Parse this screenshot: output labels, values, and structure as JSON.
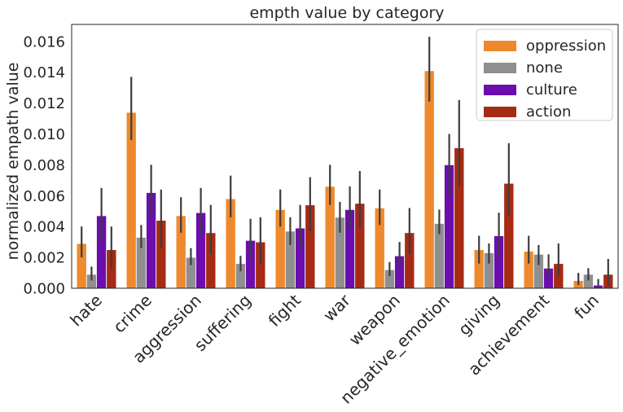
{
  "chart_data": {
    "type": "bar",
    "title": "empth value by category",
    "xlabel": "",
    "ylabel": "normalized empath value",
    "ylim": [
      0,
      0.0171
    ],
    "yticks": [
      "0.000",
      "0.002",
      "0.004",
      "0.006",
      "0.008",
      "0.010",
      "0.012",
      "0.014",
      "0.016"
    ],
    "ytick_values": [
      0,
      0.002,
      0.004,
      0.006,
      0.008,
      0.01,
      0.012,
      0.014,
      0.016
    ],
    "grid": false,
    "legend_position": "top-right",
    "categories": [
      "hate",
      "crime",
      "aggression",
      "suffering",
      "fight",
      "war",
      "weapon",
      "negative_emotion",
      "giving",
      "achievement",
      "fun"
    ],
    "series": [
      {
        "name": "oppression",
        "color": "#ee8a2d",
        "values": [
          0.0029,
          0.0114,
          0.0047,
          0.0058,
          0.0051,
          0.0066,
          0.0052,
          0.0141,
          0.0025,
          0.0024,
          0.0005
        ],
        "err_low": [
          0.002,
          0.0096,
          0.0036,
          0.0046,
          0.004,
          0.0054,
          0.0041,
          0.0121,
          0.0016,
          0.0016,
          0.0002
        ],
        "err_high": [
          0.004,
          0.0137,
          0.0059,
          0.0073,
          0.0064,
          0.008,
          0.0064,
          0.0163,
          0.0034,
          0.0034,
          0.001
        ]
      },
      {
        "name": "none",
        "color": "#8f8f8f",
        "values": [
          0.0009,
          0.0033,
          0.002,
          0.0016,
          0.0037,
          0.0046,
          0.0012,
          0.0042,
          0.0023,
          0.0022,
          0.0009
        ],
        "err_low": [
          0.0005,
          0.0026,
          0.0015,
          0.0011,
          0.0028,
          0.0036,
          0.0008,
          0.0035,
          0.0016,
          0.0015,
          0.0005
        ],
        "err_high": [
          0.0014,
          0.0041,
          0.0026,
          0.0021,
          0.0046,
          0.0056,
          0.0017,
          0.0051,
          0.0029,
          0.0028,
          0.0013
        ]
      },
      {
        "name": "culture",
        "color": "#6c0dae",
        "values": [
          0.0047,
          0.0062,
          0.0049,
          0.0031,
          0.0039,
          0.0051,
          0.0021,
          0.008,
          0.0034,
          0.0013,
          0.0002
        ],
        "err_low": [
          0.0029,
          0.0046,
          0.0035,
          0.0019,
          0.0025,
          0.0038,
          0.0013,
          0.006,
          0.002,
          0.0007,
          0.0
        ],
        "err_high": [
          0.0065,
          0.008,
          0.0065,
          0.0045,
          0.0054,
          0.0066,
          0.003,
          0.01,
          0.0049,
          0.0022,
          0.0006
        ]
      },
      {
        "name": "action",
        "color": "#a62b15",
        "values": [
          0.0025,
          0.0044,
          0.0036,
          0.003,
          0.0054,
          0.0055,
          0.0036,
          0.0091,
          0.0068,
          0.0016,
          0.0009
        ],
        "err_low": [
          0.0013,
          0.0026,
          0.0022,
          0.0016,
          0.0037,
          0.0039,
          0.0022,
          0.0066,
          0.0047,
          0.0008,
          0.0002
        ],
        "err_high": [
          0.004,
          0.0064,
          0.0054,
          0.0046,
          0.0072,
          0.0076,
          0.0052,
          0.0122,
          0.0094,
          0.0029,
          0.0019
        ]
      }
    ]
  }
}
